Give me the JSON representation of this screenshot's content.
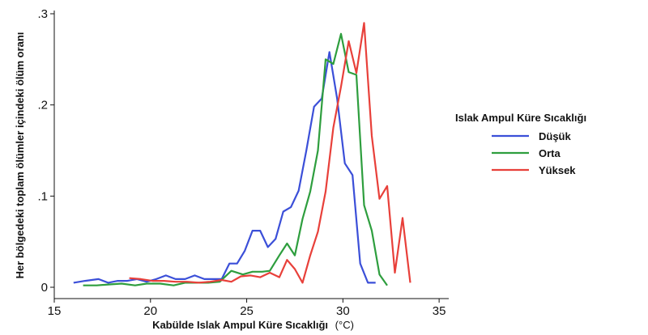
{
  "chart_data": {
    "type": "line",
    "xlabel": "Kabülde Islak Ampul Küre Sıcaklığı",
    "xlabel_unit": "(°C)",
    "ylabel": "Her bölgedeki toplam ölümler içindeki ölüm oranı",
    "xlim": [
      15,
      35.5
    ],
    "ylim": [
      0,
      0.3
    ],
    "x_ticks": [
      15,
      20,
      25,
      30,
      35
    ],
    "y_ticks": [
      0,
      0.1,
      0.2,
      0.3
    ],
    "y_tick_labels": [
      "0",
      ".1",
      ".2",
      ".3"
    ],
    "grid": false,
    "legend": {
      "title": "Islak Ampul Küre Sıcaklığı",
      "position": "right"
    },
    "series": [
      {
        "name": "Düşük",
        "color": "#3b4fd8",
        "points": [
          [
            16.0,
            0.005
          ],
          [
            16.6,
            0.007
          ],
          [
            17.3,
            0.009
          ],
          [
            17.8,
            0.005
          ],
          [
            18.3,
            0.007
          ],
          [
            18.8,
            0.007
          ],
          [
            19.3,
            0.009
          ],
          [
            19.8,
            0.006
          ],
          [
            20.3,
            0.009
          ],
          [
            20.8,
            0.013
          ],
          [
            21.3,
            0.009
          ],
          [
            21.8,
            0.009
          ],
          [
            22.3,
            0.013
          ],
          [
            22.8,
            0.009
          ],
          [
            23.3,
            0.009
          ],
          [
            23.7,
            0.009
          ],
          [
            24.1,
            0.026
          ],
          [
            24.5,
            0.026
          ],
          [
            24.9,
            0.04
          ],
          [
            25.3,
            0.062
          ],
          [
            25.7,
            0.062
          ],
          [
            26.1,
            0.044
          ],
          [
            26.5,
            0.053
          ],
          [
            26.9,
            0.083
          ],
          [
            27.3,
            0.088
          ],
          [
            27.7,
            0.106
          ],
          [
            28.1,
            0.15
          ],
          [
            28.5,
            0.198
          ],
          [
            28.9,
            0.207
          ],
          [
            29.3,
            0.258
          ],
          [
            29.7,
            0.207
          ],
          [
            30.1,
            0.136
          ],
          [
            30.5,
            0.123
          ],
          [
            30.9,
            0.026
          ],
          [
            31.3,
            0.005
          ],
          [
            31.7,
            0.005
          ]
        ]
      },
      {
        "name": "Orta",
        "color": "#2e9e3e",
        "points": [
          [
            16.5,
            0.002
          ],
          [
            17.2,
            0.002
          ],
          [
            17.8,
            0.003
          ],
          [
            18.5,
            0.004
          ],
          [
            19.2,
            0.002
          ],
          [
            19.8,
            0.004
          ],
          [
            20.5,
            0.004
          ],
          [
            21.2,
            0.002
          ],
          [
            21.8,
            0.005
          ],
          [
            22.5,
            0.005
          ],
          [
            23.0,
            0.005
          ],
          [
            23.6,
            0.006
          ],
          [
            24.2,
            0.018
          ],
          [
            24.8,
            0.014
          ],
          [
            25.3,
            0.017
          ],
          [
            25.8,
            0.017
          ],
          [
            26.2,
            0.018
          ],
          [
            26.7,
            0.035
          ],
          [
            27.1,
            0.048
          ],
          [
            27.5,
            0.035
          ],
          [
            27.9,
            0.075
          ],
          [
            28.3,
            0.105
          ],
          [
            28.7,
            0.15
          ],
          [
            29.1,
            0.25
          ],
          [
            29.5,
            0.245
          ],
          [
            29.9,
            0.278
          ],
          [
            30.3,
            0.236
          ],
          [
            30.7,
            0.233
          ],
          [
            31.1,
            0.09
          ],
          [
            31.5,
            0.062
          ],
          [
            31.9,
            0.014
          ],
          [
            32.3,
            0.002
          ]
        ]
      },
      {
        "name": "Yüksek",
        "color": "#e8403a",
        "points": [
          [
            18.9,
            0.01
          ],
          [
            19.5,
            0.009
          ],
          [
            20.1,
            0.007
          ],
          [
            20.7,
            0.007
          ],
          [
            21.3,
            0.006
          ],
          [
            21.9,
            0.006
          ],
          [
            22.5,
            0.005
          ],
          [
            23.1,
            0.006
          ],
          [
            23.7,
            0.008
          ],
          [
            24.2,
            0.006
          ],
          [
            24.7,
            0.012
          ],
          [
            25.2,
            0.013
          ],
          [
            25.7,
            0.011
          ],
          [
            26.2,
            0.016
          ],
          [
            26.7,
            0.011
          ],
          [
            27.1,
            0.03
          ],
          [
            27.5,
            0.02
          ],
          [
            27.9,
            0.005
          ],
          [
            28.3,
            0.035
          ],
          [
            28.7,
            0.061
          ],
          [
            29.1,
            0.105
          ],
          [
            29.5,
            0.175
          ],
          [
            29.9,
            0.22
          ],
          [
            30.3,
            0.27
          ],
          [
            30.7,
            0.235
          ],
          [
            31.1,
            0.29
          ],
          [
            31.5,
            0.166
          ],
          [
            31.9,
            0.097
          ],
          [
            32.3,
            0.111
          ],
          [
            32.7,
            0.016
          ],
          [
            33.1,
            0.076
          ],
          [
            33.5,
            0.005
          ]
        ]
      }
    ]
  }
}
